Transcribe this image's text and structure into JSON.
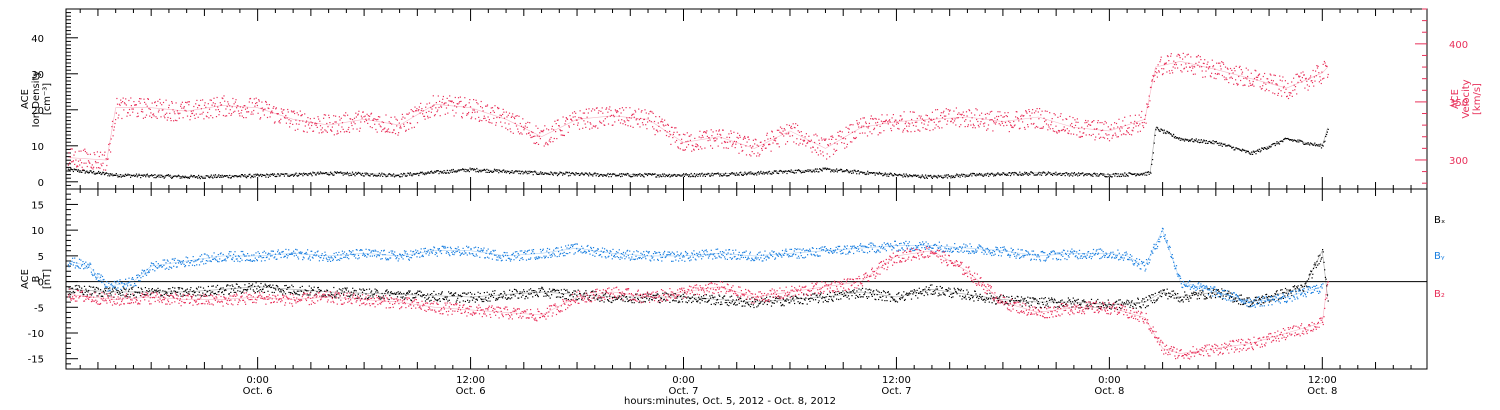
{
  "colors": {
    "density": "#000000",
    "velocity": "#e8305a",
    "bx": "#000000",
    "by": "#1a7fe0",
    "bz": "#e8305a"
  },
  "x_axis": {
    "title": "hours:minutes, Oct.  5, 2012 - Oct.  8, 2012",
    "ticks": [
      {
        "hour": 24,
        "time": "0:00",
        "date": "Oct. 6"
      },
      {
        "hour": 36,
        "time": "12:00",
        "date": "Oct. 6"
      },
      {
        "hour": 48,
        "time": "0:00",
        "date": "Oct. 7"
      },
      {
        "hour": 60,
        "time": "12:00",
        "date": "Oct. 7"
      },
      {
        "hour": 72,
        "time": "0:00",
        "date": "Oct. 8"
      },
      {
        "hour": 84,
        "time": "12:00",
        "date": "Oct. 8"
      }
    ],
    "range_hours": [
      13.2,
      89.9
    ]
  },
  "chart_data": [
    {
      "type": "scatter",
      "ylabel_lines": [
        "ACE",
        "Ion Density",
        "[cm⁻³]"
      ],
      "ylabel2_lines": [
        "ACE",
        "Velocity",
        "[km/s]"
      ],
      "ylim": [
        -2,
        48
      ],
      "yticks": [
        0,
        10,
        20,
        30,
        40
      ],
      "ylim2": [
        275,
        430
      ],
      "yticks2": [
        300,
        350,
        400
      ],
      "series": [
        {
          "key": "density",
          "axis": "left",
          "points": [
            [
              13.3,
              3.5
            ],
            [
              16,
              2
            ],
            [
              20,
              1.5
            ],
            [
              24,
              1.8
            ],
            [
              28,
              2.5
            ],
            [
              32,
              2
            ],
            [
              36,
              3.5
            ],
            [
              40,
              2.5
            ],
            [
              44,
              2
            ],
            [
              48,
              2
            ],
            [
              52,
              2.5
            ],
            [
              56,
              3.5
            ],
            [
              60,
              2
            ],
            [
              62,
              1.5
            ],
            [
              64,
              2
            ],
            [
              68,
              2.5
            ],
            [
              72,
              2
            ],
            [
              74.3,
              2.5
            ],
            [
              74.6,
              15
            ],
            [
              76,
              12
            ],
            [
              78,
              11
            ],
            [
              80,
              8
            ],
            [
              82,
              12
            ],
            [
              84,
              10
            ],
            [
              84.3,
              15
            ]
          ]
        },
        {
          "key": "velocity",
          "axis": "right",
          "points": [
            [
              13.3,
              302
            ],
            [
              15.5,
              300
            ],
            [
              16,
              345
            ],
            [
              18,
              345
            ],
            [
              20,
              342
            ],
            [
              22,
              347
            ],
            [
              24,
              345
            ],
            [
              26,
              335
            ],
            [
              28,
              330
            ],
            [
              30,
              335
            ],
            [
              32,
              330
            ],
            [
              34,
              348
            ],
            [
              36,
              345
            ],
            [
              38,
              335
            ],
            [
              40,
              320
            ],
            [
              42,
              335
            ],
            [
              44,
              338
            ],
            [
              46,
              335
            ],
            [
              48,
              315
            ],
            [
              50,
              320
            ],
            [
              52,
              310
            ],
            [
              54,
              325
            ],
            [
              56,
              310
            ],
            [
              58,
              328
            ],
            [
              60,
              333
            ],
            [
              62,
              335
            ],
            [
              64,
              337
            ],
            [
              66,
              333
            ],
            [
              68,
              337
            ],
            [
              70,
              328
            ],
            [
              72,
              325
            ],
            [
              74,
              335
            ],
            [
              74.6,
              380
            ],
            [
              76,
              385
            ],
            [
              78,
              378
            ],
            [
              80,
              370
            ],
            [
              82,
              362
            ],
            [
              84,
              375
            ],
            [
              84.3,
              380
            ]
          ]
        }
      ]
    },
    {
      "type": "scatter",
      "ylabel_lines": [
        "ACE",
        "B",
        "[nT]"
      ],
      "ylim": [
        -17,
        18
      ],
      "yticks": [
        -15,
        -10,
        -5,
        0,
        5,
        10,
        15
      ],
      "zero_line": true,
      "legend": [
        "Bₓ",
        "Bᵧ",
        "B₂"
      ],
      "series": [
        {
          "key": "bx",
          "name": "Bₓ",
          "points": [
            [
              13.3,
              -1.5
            ],
            [
              16,
              -2
            ],
            [
              20,
              -2
            ],
            [
              24,
              -1
            ],
            [
              28,
              -2
            ],
            [
              32,
              -2.5
            ],
            [
              36,
              -3
            ],
            [
              40,
              -2
            ],
            [
              44,
              -3
            ],
            [
              48,
              -3
            ],
            [
              52,
              -4
            ],
            [
              56,
              -3
            ],
            [
              58,
              -2
            ],
            [
              60,
              -3
            ],
            [
              62,
              -1.5
            ],
            [
              64,
              -2.5
            ],
            [
              66,
              -3.5
            ],
            [
              68,
              -4
            ],
            [
              70,
              -4
            ],
            [
              72,
              -4.5
            ],
            [
              74,
              -4
            ],
            [
              75,
              -2
            ],
            [
              76,
              -3
            ],
            [
              78,
              -2
            ],
            [
              80,
              -4
            ],
            [
              82,
              -2
            ],
            [
              83,
              -1
            ],
            [
              84,
              6
            ],
            [
              84.3,
              -3
            ]
          ]
        },
        {
          "key": "by",
          "name": "Bᵧ",
          "points": [
            [
              13.3,
              4
            ],
            [
              14.5,
              3
            ],
            [
              15.5,
              -1
            ],
            [
              17,
              0
            ],
            [
              18,
              3
            ],
            [
              20,
              4
            ],
            [
              22,
              5
            ],
            [
              24,
              5
            ],
            [
              26,
              5.5
            ],
            [
              28,
              5
            ],
            [
              30,
              5.5
            ],
            [
              32,
              5
            ],
            [
              34,
              6
            ],
            [
              36,
              6
            ],
            [
              38,
              5
            ],
            [
              40,
              5.5
            ],
            [
              42,
              6.5
            ],
            [
              44,
              5.5
            ],
            [
              46,
              5
            ],
            [
              48,
              5
            ],
            [
              50,
              5.5
            ],
            [
              52,
              5
            ],
            [
              54,
              5.5
            ],
            [
              56,
              6
            ],
            [
              58,
              6.5
            ],
            [
              60,
              7
            ],
            [
              62,
              7
            ],
            [
              64,
              6.5
            ],
            [
              66,
              6
            ],
            [
              68,
              5
            ],
            [
              70,
              5.5
            ],
            [
              72,
              5.5
            ],
            [
              73,
              5
            ],
            [
              74,
              3
            ],
            [
              75,
              10
            ],
            [
              76,
              0
            ],
            [
              78,
              -2
            ],
            [
              80,
              -4
            ],
            [
              82,
              -3
            ],
            [
              84,
              -1
            ]
          ]
        },
        {
          "key": "bz",
          "name": "B₂",
          "points": [
            [
              13.3,
              -2.5
            ],
            [
              16,
              -3.5
            ],
            [
              18,
              -3
            ],
            [
              20,
              -3.5
            ],
            [
              22,
              -3.5
            ],
            [
              24,
              -3
            ],
            [
              26,
              -3.5
            ],
            [
              28,
              -3
            ],
            [
              30,
              -3.5
            ],
            [
              32,
              -4
            ],
            [
              34,
              -5
            ],
            [
              36,
              -5.5
            ],
            [
              38,
              -6
            ],
            [
              40,
              -6.5
            ],
            [
              42,
              -3
            ],
            [
              44,
              -2
            ],
            [
              46,
              -3
            ],
            [
              48,
              -2
            ],
            [
              50,
              -1
            ],
            [
              52,
              -3
            ],
            [
              54,
              -2
            ],
            [
              56,
              -1
            ],
            [
              58,
              0
            ],
            [
              60,
              5
            ],
            [
              62,
              6
            ],
            [
              64,
              2
            ],
            [
              66,
              -4
            ],
            [
              68,
              -6
            ],
            [
              70,
              -5
            ],
            [
              72,
              -5
            ],
            [
              74,
              -7
            ],
            [
              75,
              -13
            ],
            [
              76,
              -14
            ],
            [
              78,
              -13
            ],
            [
              80,
              -12
            ],
            [
              82,
              -10
            ],
            [
              84,
              -8
            ],
            [
              84.3,
              0
            ]
          ]
        }
      ]
    }
  ]
}
